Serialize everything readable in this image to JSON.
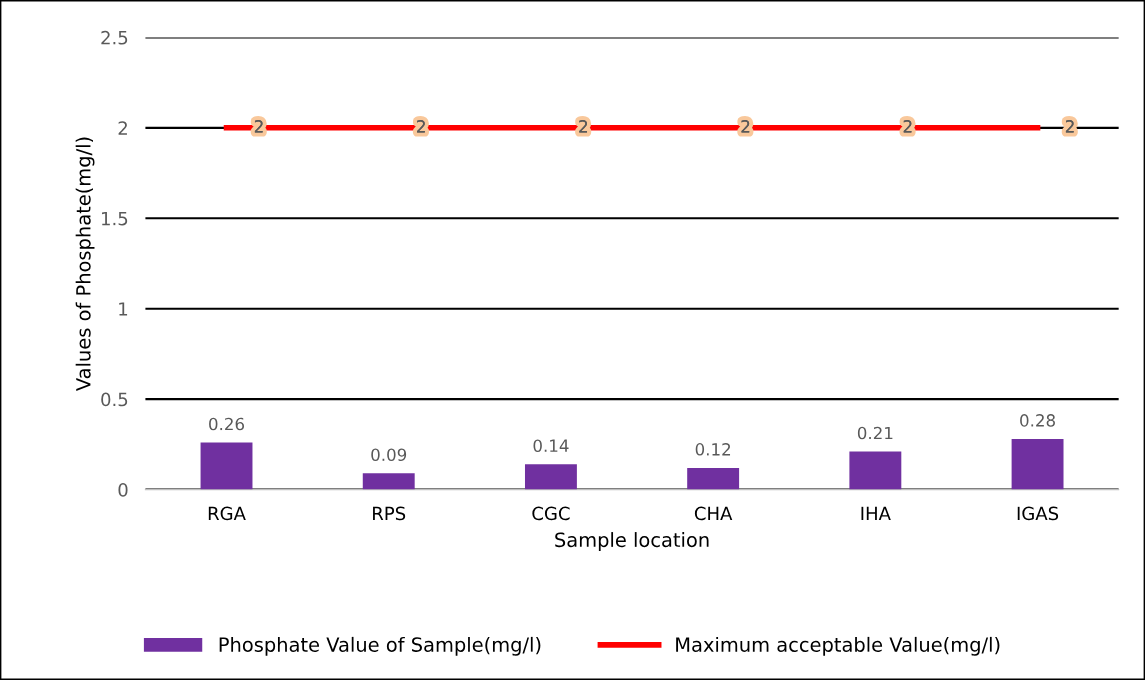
{
  "chart_data": {
    "type": "bar",
    "xlabel": "Sample location",
    "ylabel": "Values of Phosphate(mg/l)",
    "categories": [
      "RGA",
      "RPS",
      "CGC",
      "CHA",
      "IHA",
      "IGAS"
    ],
    "series": [
      {
        "name": "Phosphate Value of Sample(mg/l)",
        "color": "#7030a0",
        "values": [
          0.26,
          0.09,
          0.14,
          0.12,
          0.21,
          0.28
        ]
      },
      {
        "name": "Maximum acceptable Value(mg/l)",
        "type": "line",
        "color": "#ff0000",
        "values": [
          2,
          2,
          2,
          2,
          2,
          2
        ]
      }
    ],
    "ylim": [
      0,
      2.5
    ],
    "yticks": [
      0,
      0.5,
      1,
      1.5,
      2,
      2.5
    ],
    "grid": "y",
    "legend": "bottom",
    "data_labels": true,
    "marker": "none",
    "line_style": "solid"
  }
}
